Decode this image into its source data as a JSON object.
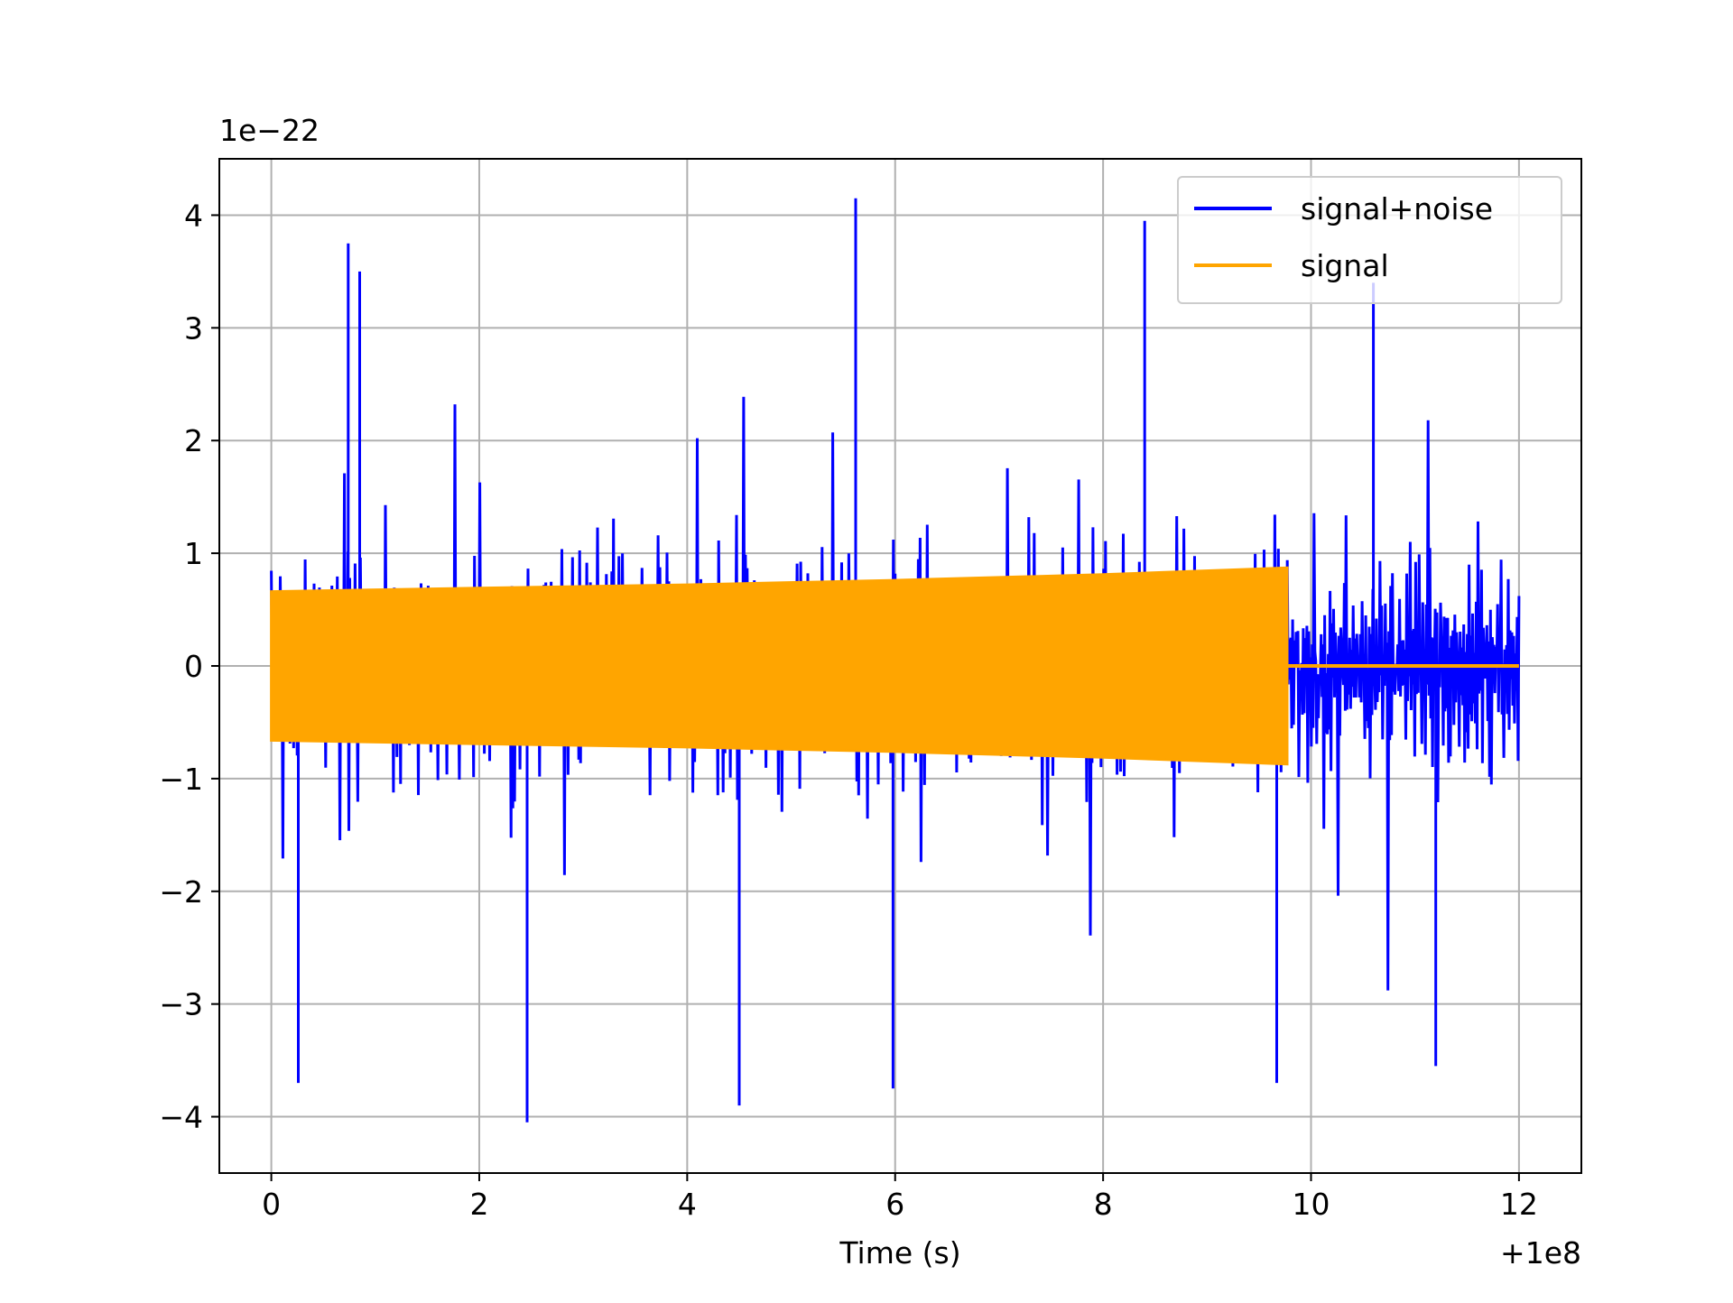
{
  "chart_data": {
    "type": "line",
    "xlabel": "Time (s)",
    "x_offset_label": "+1e8",
    "y_scale_label": "1e−22",
    "xlim": [
      -0.5,
      12.6
    ],
    "ylim": [
      -4.5,
      4.5
    ],
    "x_ticks": [
      0,
      2,
      4,
      6,
      8,
      10,
      12
    ],
    "x_tick_labels": [
      "0",
      "2",
      "4",
      "6",
      "8",
      "10",
      "12"
    ],
    "y_ticks": [
      -4,
      -3,
      -2,
      -1,
      0,
      1,
      2,
      3,
      4
    ],
    "y_tick_labels": [
      "−4",
      "−3",
      "−2",
      "−1",
      "0",
      "1",
      "2",
      "3",
      "4"
    ],
    "grid": true,
    "legend_position": "top-right",
    "colors": {
      "signal_noise": "#0000ff",
      "signal": "#ffa500",
      "grid": "#b0b0b0"
    },
    "series": [
      {
        "name": "signal+noise",
        "description_values": {
          "x_range": [
            0,
            12
          ],
          "typical_band": [
            -1.9,
            1.9
          ],
          "peak_values": [
            {
              "x": 5.62,
              "y": 4.15
            },
            {
              "x": 8.4,
              "y": 3.95
            },
            {
              "x": 10.6,
              "y": 3.4
            },
            {
              "x": 0.74,
              "y": 3.75
            },
            {
              "x": 0.85,
              "y": 3.5
            },
            {
              "x": 2.46,
              "y": -4.05
            },
            {
              "x": 0.26,
              "y": -3.7
            },
            {
              "x": 4.5,
              "y": -3.9
            },
            {
              "x": 5.98,
              "y": -3.75
            },
            {
              "x": 9.67,
              "y": -3.7
            },
            {
              "x": 11.2,
              "y": -3.55
            }
          ]
        }
      },
      {
        "name": "signal",
        "envelope": [
          {
            "x": 0.0,
            "amp": 0.66
          },
          {
            "x": 2.0,
            "amp": 0.69
          },
          {
            "x": 4.0,
            "amp": 0.72
          },
          {
            "x": 6.0,
            "amp": 0.76
          },
          {
            "x": 8.0,
            "amp": 0.81
          },
          {
            "x": 9.77,
            "amp": 0.87
          }
        ],
        "end_x": 9.77,
        "after_end_value": 0.0,
        "x_end": 12.0
      }
    ]
  }
}
